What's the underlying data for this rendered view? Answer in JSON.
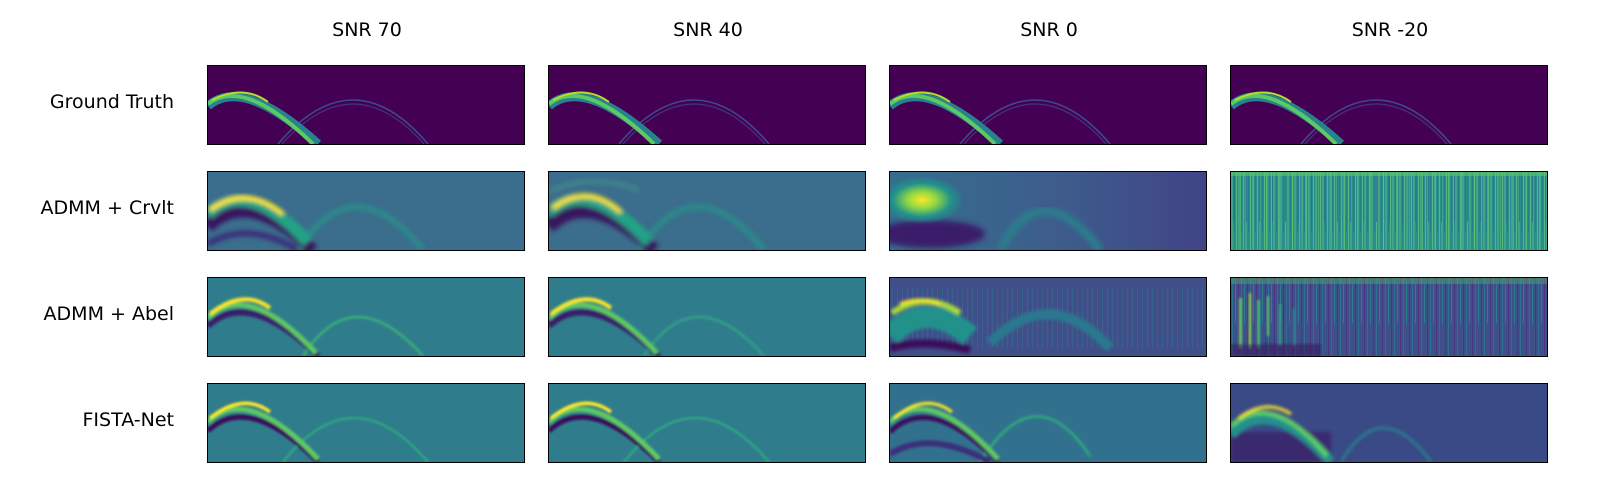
{
  "columns": [
    "SNR 70",
    "SNR 40",
    "SNR 0",
    "SNR -20"
  ],
  "rows": [
    "Ground Truth",
    "ADMM + Crvlt",
    "ADMM + Abel",
    "FISTA-Net"
  ],
  "colors": {
    "gt_background": "#440154",
    "crvlt_background": "#3b6d8c",
    "teal_background": "#2f7d8c",
    "low_snr_background": "#3f4f8a",
    "fista_low_background": "#394a86",
    "bright": "#fde725",
    "mid": "#5ec962",
    "dark": "#3a0c5a",
    "faint_arc": "#3f4c8c"
  }
}
